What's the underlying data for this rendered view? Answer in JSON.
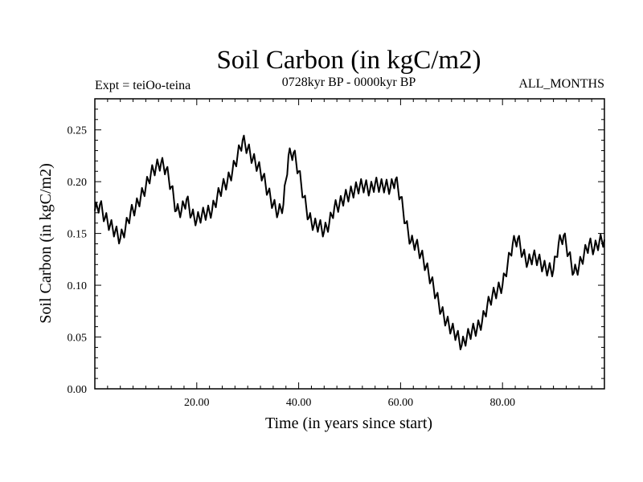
{
  "chart_data": {
    "type": "line",
    "title": "Soil Carbon (in kgC/m2)",
    "subtitle_left": "Expt = teiOo-teina",
    "subtitle_center": "0728kyr BP - 0000kyr BP",
    "subtitle_right": "ALL_MONTHS",
    "xlabel": "Time (in years since start)",
    "ylabel": "Soil Carbon (in kgC/m2)",
    "xlim": [
      0,
      100
    ],
    "ylim": [
      0,
      0.28
    ],
    "xticks": [
      20,
      40,
      60,
      80
    ],
    "xtick_labels": [
      "20.00",
      "40.00",
      "60.00",
      "80.00"
    ],
    "yticks": [
      0,
      0.05,
      0.1,
      0.15,
      0.2,
      0.25
    ],
    "ytick_labels": [
      "0.00",
      "0.05",
      "0.10",
      "0.15",
      "0.20",
      "0.25"
    ],
    "grid": false,
    "series": [
      {
        "name": "Soil Carbon",
        "color": "#000000",
        "x": [
          0,
          1,
          2,
          3,
          4,
          5,
          6,
          7,
          8,
          9,
          10,
          11,
          12,
          13,
          14,
          15,
          16,
          17,
          18,
          19,
          20,
          21,
          22,
          23,
          24,
          25,
          26,
          27,
          28,
          29,
          30,
          31,
          32,
          33,
          34,
          35,
          36,
          37,
          38,
          39,
          40,
          41,
          42,
          43,
          44,
          45,
          46,
          47,
          48,
          49,
          50,
          51,
          52,
          53,
          54,
          55,
          56,
          57,
          58,
          59,
          60,
          61,
          62,
          63,
          64,
          65,
          66,
          67,
          68,
          69,
          70,
          71,
          72,
          73,
          74,
          75,
          76,
          77,
          78,
          79,
          80,
          81,
          82,
          83,
          84,
          85,
          86,
          87,
          88,
          89,
          90,
          91,
          92,
          93,
          94,
          95,
          96,
          97,
          98,
          99,
          100
        ],
        "values": [
          0.172,
          0.178,
          0.165,
          0.158,
          0.152,
          0.145,
          0.155,
          0.17,
          0.175,
          0.185,
          0.195,
          0.208,
          0.214,
          0.218,
          0.212,
          0.195,
          0.172,
          0.172,
          0.183,
          0.168,
          0.163,
          0.168,
          0.17,
          0.172,
          0.185,
          0.195,
          0.2,
          0.21,
          0.225,
          0.24,
          0.232,
          0.222,
          0.215,
          0.205,
          0.19,
          0.178,
          0.17,
          0.178,
          0.225,
          0.228,
          0.21,
          0.185,
          0.165,
          0.158,
          0.158,
          0.152,
          0.16,
          0.175,
          0.178,
          0.185,
          0.188,
          0.192,
          0.196,
          0.196,
          0.192,
          0.198,
          0.196,
          0.196,
          0.194,
          0.202,
          0.185,
          0.16,
          0.142,
          0.14,
          0.13,
          0.118,
          0.105,
          0.09,
          0.075,
          0.065,
          0.058,
          0.052,
          0.042,
          0.05,
          0.056,
          0.058,
          0.065,
          0.08,
          0.09,
          0.095,
          0.1,
          0.12,
          0.14,
          0.145,
          0.13,
          0.122,
          0.128,
          0.125,
          0.118,
          0.115,
          0.115,
          0.14,
          0.148,
          0.13,
          0.112,
          0.118,
          0.13,
          0.14,
          0.135,
          0.142,
          0.144
        ]
      }
    ]
  }
}
